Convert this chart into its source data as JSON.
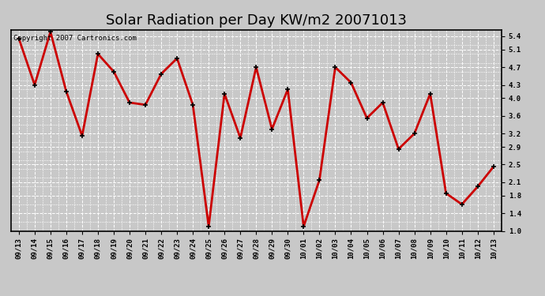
{
  "title": "Solar Radiation per Day KW/m2 20071013",
  "copyright_text": "Copyright 2007 Cartronics.com",
  "dates": [
    "09/13",
    "09/14",
    "09/15",
    "09/16",
    "09/17",
    "09/18",
    "09/19",
    "09/20",
    "09/21",
    "09/22",
    "09/23",
    "09/24",
    "09/25",
    "09/26",
    "09/27",
    "09/28",
    "09/29",
    "09/30",
    "10/01",
    "10/02",
    "10/03",
    "10/04",
    "10/05",
    "10/06",
    "10/07",
    "10/08",
    "10/09",
    "10/10",
    "10/11",
    "10/12",
    "10/13"
  ],
  "values": [
    5.35,
    4.3,
    5.5,
    4.15,
    3.15,
    5.0,
    4.6,
    3.9,
    3.85,
    4.55,
    4.9,
    3.85,
    1.1,
    4.1,
    3.1,
    4.7,
    3.3,
    4.2,
    1.1,
    2.15,
    4.7,
    4.35,
    3.55,
    3.9,
    2.85,
    3.2,
    4.1,
    1.85,
    1.6,
    2.0,
    2.45
  ],
  "line_color": "#cc0000",
  "bg_color": "#c8c8c8",
  "plot_bg_color": "#c8c8c8",
  "grid_color": "#ffffff",
  "ylim_min": 1.0,
  "ylim_max": 5.5,
  "yticks": [
    1.0,
    1.4,
    1.8,
    2.1,
    2.5,
    2.9,
    3.2,
    3.6,
    4.0,
    4.3,
    4.7,
    5.1,
    5.4
  ],
  "title_fontsize": 13,
  "copyright_fontsize": 6.5,
  "tick_fontsize": 6.5,
  "line_width": 2.0,
  "marker_size": 4
}
